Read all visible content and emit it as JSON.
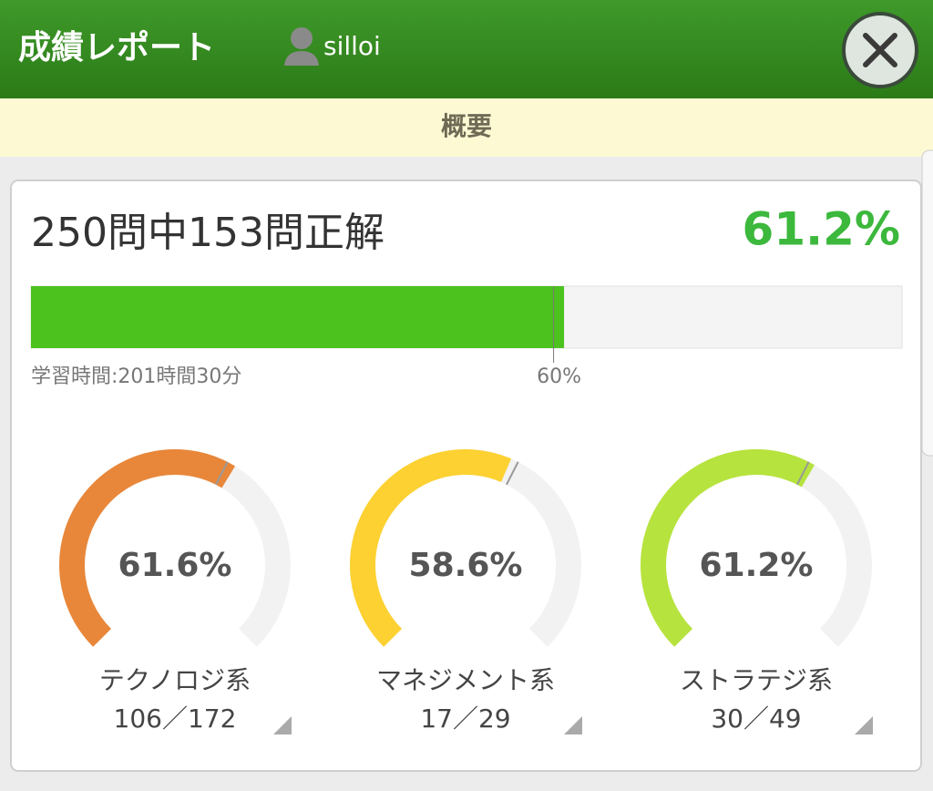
{
  "header": {
    "title": "成績レポート",
    "user": "silloi"
  },
  "tab": "概要",
  "summary": {
    "text": "250問中153問正解",
    "rate": {
      "value": 61.2,
      "label": "61.2%"
    },
    "pass_mark": {
      "value": 60,
      "label": "60%"
    },
    "study_time": "学習時間:201時間30分"
  },
  "gauges": [
    {
      "rate": {
        "value": 61.6,
        "label": "61.6%"
      },
      "name": "テクノロジ系",
      "count": "106／172",
      "color": "#e8873a"
    },
    {
      "rate": {
        "value": 58.6,
        "label": "58.6%"
      },
      "name": "マネジメント系",
      "count": "17／29",
      "color": "#fcd131"
    },
    {
      "rate": {
        "value": 61.2,
        "label": "61.2%"
      },
      "name": "ストラテジ系",
      "count": "30／49",
      "color": "#b6e33d"
    }
  ]
}
